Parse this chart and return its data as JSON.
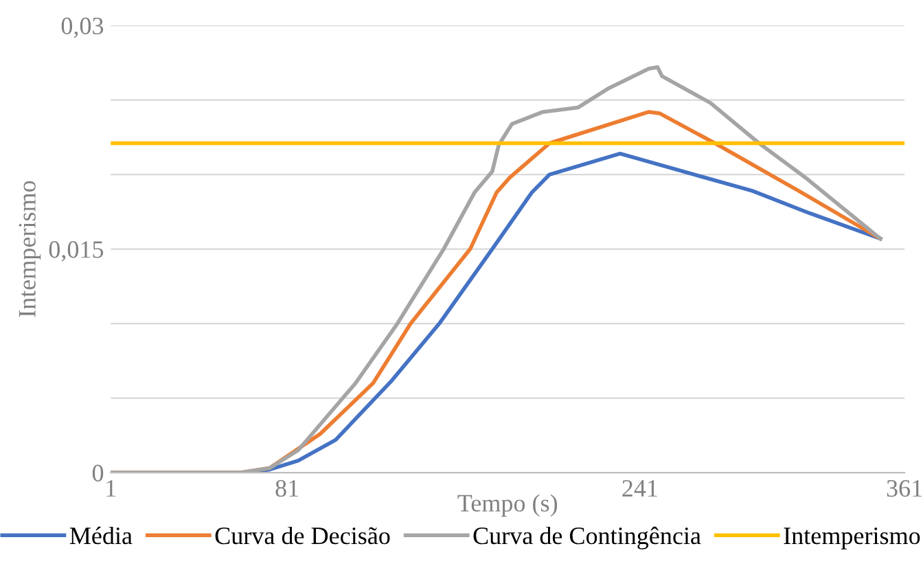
{
  "chart_data": {
    "type": "line",
    "xlabel": "Tempo (s)",
    "ylabel": "Intemperismo",
    "xlim": [
      1,
      361
    ],
    "xticks": [
      1,
      81,
      241,
      361
    ],
    "ylim": [
      0,
      0.03
    ],
    "yticks": [
      {
        "value": 0,
        "label": "0"
      },
      {
        "value": 0.005,
        "label": null
      },
      {
        "value": 0.01,
        "label": null
      },
      {
        "value": 0.015,
        "label": "0,015"
      },
      {
        "value": 0.02,
        "label": null
      },
      {
        "value": 0.025,
        "label": null
      },
      {
        "value": 0.03,
        "label": "0,03"
      }
    ],
    "grid": "y",
    "legend": "bottom",
    "marker": "none",
    "line_style": "solid",
    "series": [
      {
        "name": "Média",
        "color": "#4472c4",
        "x": [
          1,
          60,
          73,
          86,
          103,
          128,
          150,
          174,
          192,
          200,
          232,
          292,
          318,
          350
        ],
        "values": [
          0,
          0,
          0.0002,
          0.0008,
          0.0022,
          0.0061,
          0.01,
          0.015,
          0.0188,
          0.02,
          0.0214,
          0.0189,
          0.0174,
          0.0157
        ]
      },
      {
        "name": "Curva de Decisão",
        "color": "#ed7d31",
        "x": [
          1,
          60,
          73,
          96,
          120,
          137,
          164,
          176,
          182,
          200,
          245,
          250,
          275,
          313,
          350
        ],
        "values": [
          0,
          0,
          0.0003,
          0.0026,
          0.006,
          0.01,
          0.015,
          0.0188,
          0.0198,
          0.0221,
          0.0242,
          0.0241,
          0.0221,
          0.0189,
          0.0157
        ]
      },
      {
        "name": "Curva de Contingência",
        "color": "#a5a5a5",
        "x": [
          1,
          60,
          73,
          86,
          112,
          131,
          152,
          166,
          174,
          177,
          183,
          197,
          213,
          227,
          245,
          249,
          251,
          273,
          295,
          316,
          350
        ],
        "values": [
          0,
          0,
          0.0003,
          0.0015,
          0.006,
          0.01,
          0.015,
          0.0188,
          0.0202,
          0.022,
          0.0234,
          0.0242,
          0.0245,
          0.0258,
          0.0271,
          0.0272,
          0.0266,
          0.0248,
          0.0221,
          0.0198,
          0.0157
        ]
      },
      {
        "name": "Intemperismo",
        "color": "#ffc000",
        "x": [
          1,
          361
        ],
        "values": [
          0.0221,
          0.0221
        ]
      }
    ]
  }
}
